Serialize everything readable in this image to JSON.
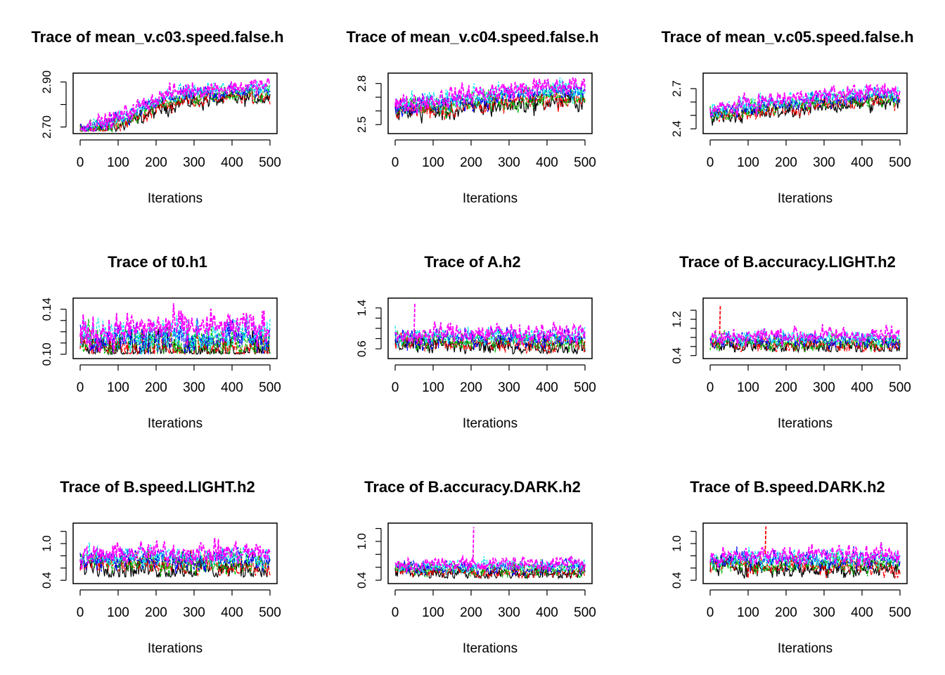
{
  "series_colors": [
    "#000000",
    "#ff0000",
    "#00bb00",
    "#0000ff",
    "#00e5ee",
    "#ff00ff"
  ],
  "chart_data": [
    {
      "type": "line",
      "title": "Trace of mean_v.c03.speed.false.h",
      "xlabel": "Iterations",
      "xlim": [
        0,
        500
      ],
      "xticks": [
        0,
        100,
        200,
        300,
        400,
        500
      ],
      "ylim": [
        2.68,
        2.93
      ],
      "yticks": [
        2.7,
        2.8,
        2.9
      ],
      "ytick_labels": [
        "2.70",
        "",
        "2.90"
      ],
      "series_count": 6,
      "trend": [
        [
          0,
          2.69
        ],
        [
          50,
          2.7
        ],
        [
          100,
          2.72
        ],
        [
          150,
          2.76
        ],
        [
          200,
          2.8
        ],
        [
          250,
          2.83
        ],
        [
          300,
          2.84
        ],
        [
          400,
          2.85
        ],
        [
          500,
          2.86
        ]
      ],
      "noise": 0.03,
      "spike": null
    },
    {
      "type": "line",
      "title": "Trace of mean_v.c04.speed.false.h",
      "xlabel": "Iterations",
      "xlim": [
        0,
        500
      ],
      "xticks": [
        0,
        100,
        200,
        300,
        400,
        500
      ],
      "ylim": [
        2.45,
        2.86
      ],
      "yticks": [
        2.5,
        2.6,
        2.7,
        2.8
      ],
      "ytick_labels": [
        "2.5",
        "",
        "",
        "2.8"
      ],
      "series_count": 6,
      "trend": [
        [
          0,
          2.62
        ],
        [
          100,
          2.64
        ],
        [
          200,
          2.67
        ],
        [
          300,
          2.7
        ],
        [
          400,
          2.72
        ],
        [
          500,
          2.73
        ]
      ],
      "noise": 0.06,
      "spike": null
    },
    {
      "type": "line",
      "title": "Trace of mean_v.c05.speed.false.h",
      "xlabel": "Iterations",
      "xlim": [
        0,
        500
      ],
      "xticks": [
        0,
        100,
        200,
        300,
        400,
        500
      ],
      "ylim": [
        2.38,
        2.8
      ],
      "yticks": [
        2.4,
        2.5,
        2.6,
        2.7
      ],
      "ytick_labels": [
        "2.4",
        "",
        "",
        "2.7"
      ],
      "series_count": 6,
      "trend": [
        [
          0,
          2.52
        ],
        [
          100,
          2.55
        ],
        [
          200,
          2.58
        ],
        [
          300,
          2.61
        ],
        [
          400,
          2.63
        ],
        [
          500,
          2.64
        ]
      ],
      "noise": 0.05,
      "spike": null
    },
    {
      "type": "line",
      "title": "Trace of t0.h1",
      "xlabel": "Iterations",
      "xlim": [
        0,
        500
      ],
      "xticks": [
        0,
        100,
        200,
        300,
        400,
        500
      ],
      "ylim": [
        0.098,
        0.148
      ],
      "yticks": [
        0.1,
        0.11,
        0.12,
        0.13,
        0.14
      ],
      "ytick_labels": [
        "0.10",
        "",
        "",
        "",
        "0.14"
      ],
      "series_count": 6,
      "trend": [
        [
          0,
          0.113
        ],
        [
          500,
          0.113
        ]
      ],
      "noise": 0.012,
      "floor": 0.1,
      "spike": null
    },
    {
      "type": "line",
      "title": "Trace of A.h2",
      "xlabel": "Iterations",
      "xlim": [
        0,
        500
      ],
      "xticks": [
        0,
        100,
        200,
        300,
        400,
        500
      ],
      "ylim": [
        0.45,
        1.55
      ],
      "yticks": [
        0.6,
        0.8,
        1.0,
        1.2,
        1.4
      ],
      "ytick_labels": [
        "0.6",
        "",
        "",
        "",
        "1.4"
      ],
      "series_count": 6,
      "trend": [
        [
          0,
          0.78
        ],
        [
          500,
          0.78
        ]
      ],
      "noise": 0.15,
      "floor": 0.5,
      "spike": [
        50,
        1.5
      ]
    },
    {
      "type": "line",
      "title": "Trace of B.accuracy.LIGHT.h2",
      "xlabel": "Iterations",
      "xlim": [
        0,
        500
      ],
      "xticks": [
        0,
        100,
        200,
        300,
        400,
        500
      ],
      "ylim": [
        0.38,
        1.62
      ],
      "yticks": [
        0.4,
        0.6,
        0.8,
        1.0,
        1.2,
        1.4
      ],
      "ytick_labels": [
        "0.4",
        "",
        "",
        "",
        "1.2",
        ""
      ],
      "series_count": 6,
      "trend": [
        [
          0,
          0.72
        ],
        [
          500,
          0.72
        ]
      ],
      "noise": 0.15,
      "floor": 0.48,
      "spike": [
        25,
        1.52
      ]
    },
    {
      "type": "line",
      "title": "Trace of B.speed.LIGHT.h2",
      "xlabel": "Iterations",
      "xlim": [
        0,
        500
      ],
      "xticks": [
        0,
        100,
        200,
        300,
        400,
        500
      ],
      "ylim": [
        0.38,
        1.3
      ],
      "yticks": [
        0.4,
        0.6,
        0.8,
        1.0,
        1.2
      ],
      "ytick_labels": [
        "0.4",
        "",
        "",
        "1.0",
        ""
      ],
      "series_count": 6,
      "trend": [
        [
          0,
          0.72
        ],
        [
          500,
          0.72
        ]
      ],
      "noise": 0.15,
      "floor": 0.45,
      "spike": null
    },
    {
      "type": "line",
      "title": "Trace of B.accuracy.DARK.h2",
      "xlabel": "Iterations",
      "xlim": [
        0,
        500
      ],
      "xticks": [
        0,
        100,
        200,
        300,
        400,
        500
      ],
      "ylim": [
        0.38,
        1.25
      ],
      "yticks": [
        0.4,
        0.6,
        0.8,
        1.0,
        1.2
      ],
      "ytick_labels": [
        "0.4",
        "",
        "",
        "1.0",
        ""
      ],
      "series_count": 6,
      "trend": [
        [
          0,
          0.58
        ],
        [
          500,
          0.58
        ]
      ],
      "noise": 0.09,
      "floor": 0.43,
      "spike": [
        205,
        1.22
      ]
    },
    {
      "type": "line",
      "title": "Trace of B.speed.DARK.h2",
      "xlabel": "Iterations",
      "xlim": [
        0,
        500
      ],
      "xticks": [
        0,
        100,
        200,
        300,
        400,
        500
      ],
      "ylim": [
        0.38,
        1.3
      ],
      "yticks": [
        0.4,
        0.6,
        0.8,
        1.0,
        1.2
      ],
      "ytick_labels": [
        "0.4",
        "",
        "",
        "1.0",
        ""
      ],
      "series_count": 6,
      "trend": [
        [
          0,
          0.7
        ],
        [
          500,
          0.7
        ]
      ],
      "noise": 0.13,
      "floor": 0.43,
      "spike": [
        145,
        1.28
      ]
    }
  ]
}
